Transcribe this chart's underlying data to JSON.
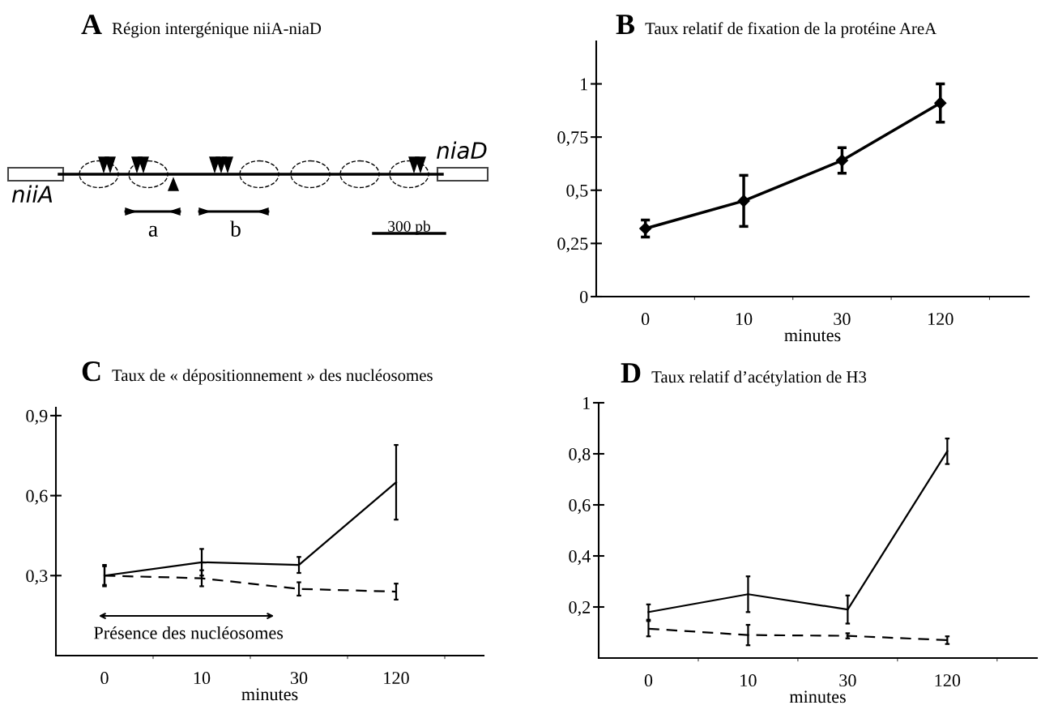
{
  "chart_data": [
    {
      "type": "other",
      "title": "A",
      "subtitle": "Région intergénique niiA-niaD",
      "annotations": [
        "niiA",
        "niaD",
        "a",
        "b",
        "300 pb"
      ]
    },
    {
      "type": "line",
      "title": "B",
      "subtitle": "Taux relatif de fixation de la protéine AreA",
      "xlabel": "minutes",
      "categories": [
        "0",
        "10",
        "30",
        "120"
      ],
      "ylim": [
        0,
        1.2
      ],
      "yticks": [
        0,
        {
          "value": 0.25,
          "label": "0,25"
        },
        {
          "value": 0.5,
          "label": "0,5"
        },
        {
          "value": 0.75,
          "label": "0,75"
        },
        1
      ],
      "marker": "diamond",
      "line_style": "solid",
      "series": [
        {
          "color": "#000000",
          "values": [
            0.32,
            0.45,
            0.64,
            0.91
          ],
          "errors": [
            0.04,
            0.12,
            0.06,
            0.09
          ]
        }
      ]
    },
    {
      "type": "line",
      "title": "C",
      "subtitle": "Taux de « dépositionnement » des nucléosomes",
      "xlabel": "minutes",
      "categories": [
        "0",
        "10",
        "30",
        "120"
      ],
      "ylim": [
        0,
        0.93
      ],
      "yticks": [
        {
          "value": 0.3,
          "label": "0,3"
        },
        {
          "value": 0.6,
          "label": "0,6"
        },
        {
          "value": 0.9,
          "label": "0,9"
        }
      ],
      "marker": "none",
      "annotations": [
        "Présence des nucléosomes"
      ],
      "series": [
        {
          "color": "#000000",
          "line_style": "solid",
          "values": [
            0.3,
            0.35,
            0.34,
            0.65
          ],
          "errors": [
            0.04,
            0.05,
            0.03,
            0.14
          ]
        },
        {
          "color": "#000000",
          "line_style": "dashed",
          "values": [
            0.3,
            0.29,
            0.25,
            0.24
          ],
          "errors": [
            0.035,
            0.03,
            0.025,
            0.03
          ]
        }
      ]
    },
    {
      "type": "line",
      "title": "D",
      "subtitle": "Taux relatif d’acétylation de H3",
      "xlabel": "minutes",
      "categories": [
        "0",
        "10",
        "30",
        "120"
      ],
      "ylim": [
        0,
        1.0
      ],
      "yticks": [
        {
          "value": 0.2,
          "label": "0,2"
        },
        {
          "value": 0.4,
          "label": "0,4"
        },
        {
          "value": 0.6,
          "label": "0,6"
        },
        {
          "value": 0.8,
          "label": "0,8"
        },
        1
      ],
      "marker": "none",
      "series": [
        {
          "color": "#000000",
          "line_style": "solid",
          "values": [
            0.18,
            0.25,
            0.19,
            0.81
          ],
          "errors": [
            0.03,
            0.07,
            0.055,
            0.05
          ]
        },
        {
          "color": "#000000",
          "line_style": "dashed",
          "values": [
            0.115,
            0.09,
            0.087,
            0.07
          ],
          "errors": [
            0.03,
            0.04,
            0.01,
            0.015
          ]
        }
      ]
    }
  ]
}
